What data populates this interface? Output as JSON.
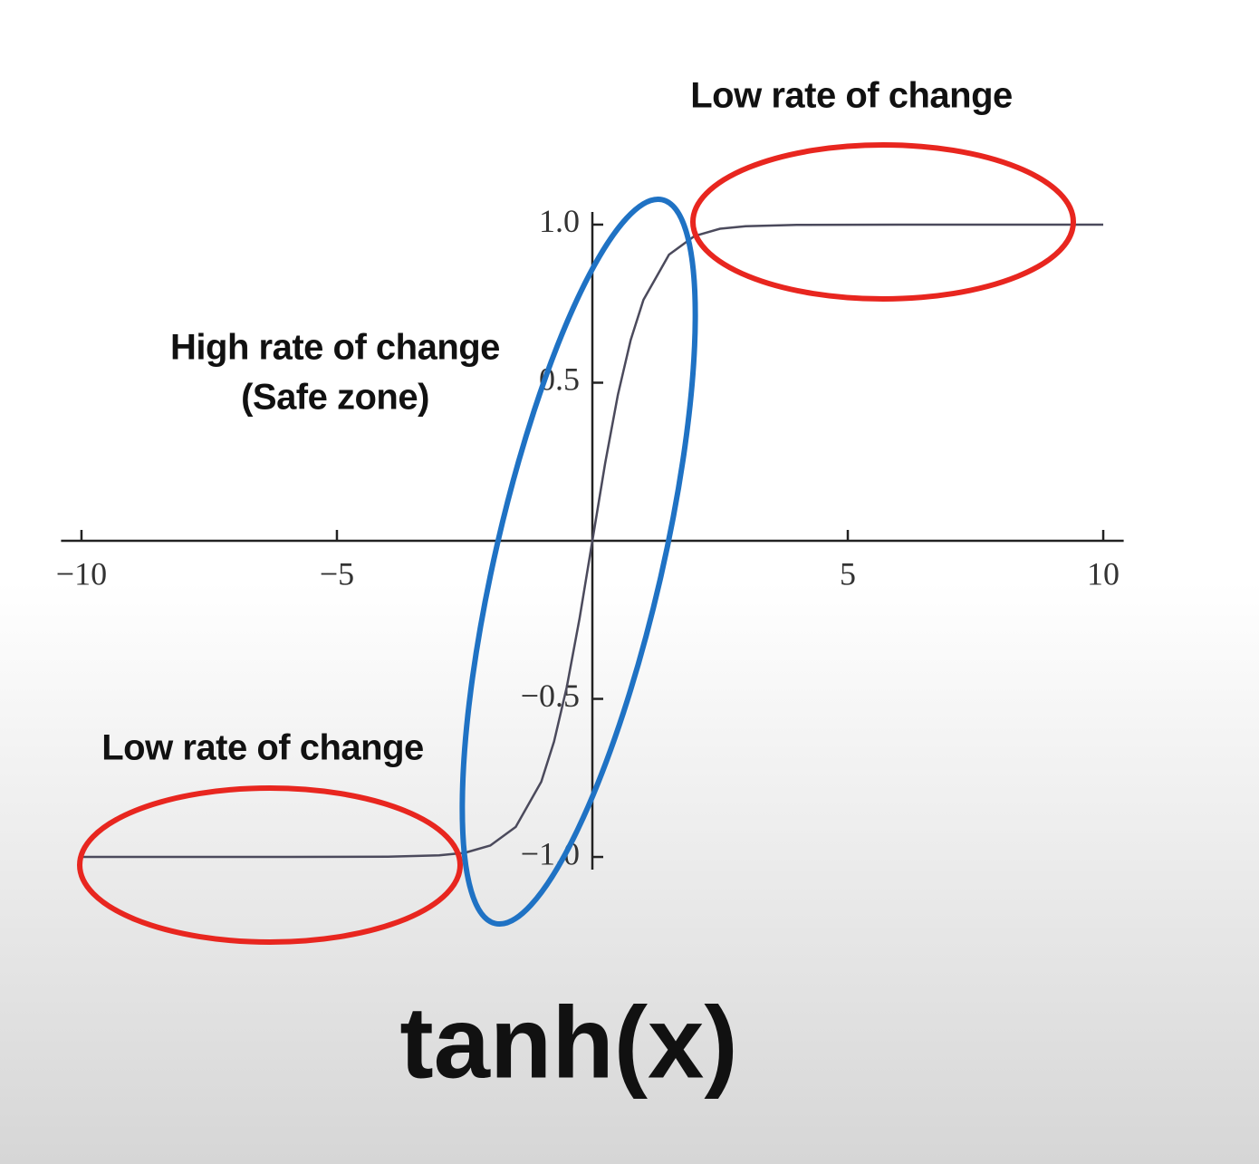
{
  "chart_data": {
    "type": "line",
    "title": "tanh(x)",
    "x": [
      -10,
      -8,
      -6,
      -4,
      -3,
      -2.5,
      -2,
      -1.5,
      -1,
      -0.75,
      -0.5,
      -0.25,
      0,
      0.25,
      0.5,
      0.75,
      1,
      1.5,
      2,
      2.5,
      3,
      4,
      6,
      8,
      10
    ],
    "series": [
      {
        "color": "#4b4a5c",
        "values": [
          -1,
          -1,
          -1,
          -0.999,
          -0.995,
          -0.987,
          -0.964,
          -0.905,
          -0.762,
          -0.635,
          -0.462,
          -0.245,
          0,
          0.245,
          0.462,
          0.635,
          0.762,
          0.905,
          0.964,
          0.987,
          0.995,
          0.999,
          1,
          1,
          1
        ]
      }
    ],
    "xlim": [
      -10.4,
      10.4
    ],
    "ylim": [
      -1.04,
      1.04
    ],
    "xticks": [
      {
        "value": -10,
        "label": "−10"
      },
      {
        "value": -5,
        "label": "−5"
      },
      5,
      10
    ],
    "yticks": [
      {
        "value": -1,
        "label": "−1.0"
      },
      {
        "value": -0.5,
        "label": "−0.5"
      },
      0.5,
      {
        "value": 1,
        "label": "1.0"
      }
    ],
    "annotations": [
      "Low rate of change",
      "High rate of change",
      "(Safe zone)",
      "Low rate of change"
    ]
  }
}
